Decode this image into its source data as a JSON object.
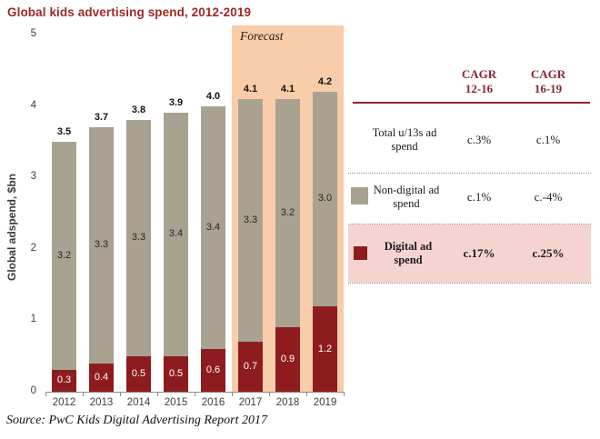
{
  "title": "Global kids advertising spend, 2012-2019",
  "title_color": "#9c2a25",
  "source": "Source: PwC Kids Digital Advertising Report 2017",
  "chart_data": {
    "type": "bar",
    "stacked": true,
    "title": "Global kids advertising spend, 2012-2019",
    "ylabel": "Global adspend, $bn",
    "ylim": [
      0,
      5
    ],
    "yticks": [
      0,
      1,
      2,
      3,
      4,
      5
    ],
    "grid": false,
    "categories": [
      "2012",
      "2013",
      "2014",
      "2015",
      "2016",
      "2017",
      "2018",
      "2019"
    ],
    "series": [
      {
        "name": "Digital ad spend",
        "color": "#8e1c1e",
        "label_color": "#ffffff",
        "values": [
          0.3,
          0.4,
          0.5,
          0.5,
          0.6,
          0.7,
          0.9,
          1.2
        ]
      },
      {
        "name": "Non-digital ad spend",
        "color": "#a9a291",
        "label_color": "#262626",
        "values": [
          3.2,
          3.3,
          3.3,
          3.4,
          3.4,
          3.3,
          3.2,
          3.0
        ]
      }
    ],
    "totals": [
      3.5,
      3.7,
      3.8,
      3.9,
      4.0,
      4.1,
      4.1,
      4.2
    ],
    "forecast": {
      "label": "Forecast",
      "start_category": "2017",
      "background": "#f9cda9"
    },
    "legend_position": "table-right"
  },
  "table": {
    "col1_header": [
      "CAGR",
      "12-16"
    ],
    "col2_header": [
      "CAGR",
      "16-19"
    ],
    "accent_color": "#8d2332",
    "highlight_color": "#f5d3cf",
    "rows": [
      {
        "label": "Total u/13s ad spend",
        "cagr_12_16": "c.3%",
        "cagr_16_19": "c.1%"
      },
      {
        "label": "Non-digital ad spend",
        "cagr_12_16": "c.1%",
        "cagr_16_19": "c.-4%"
      },
      {
        "label": "Digital ad spend",
        "cagr_12_16": "c.17%",
        "cagr_16_19": "c.25%"
      }
    ]
  }
}
